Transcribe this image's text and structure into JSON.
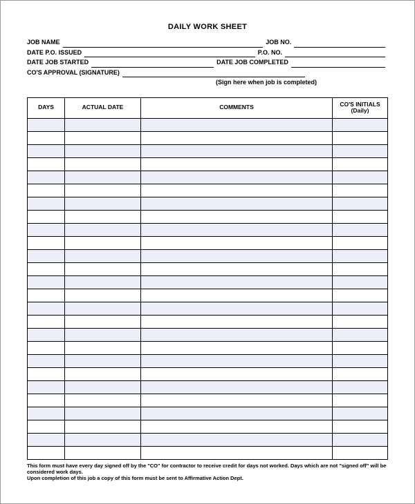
{
  "title": "DAILY WORK SHEET",
  "header": {
    "job_name_label": "JOB NAME",
    "job_no_label": "JOB NO.",
    "date_po_issued_label": "DATE  P.O. ISSUED",
    "po_no_label": "P.O. NO.",
    "date_job_started_label": "DATE JOB STARTED",
    "date_job_completed_label": "DATE JOB COMPLETED",
    "cos_approval_label": "CO'S APPROVAL (SIGNATURE)",
    "sign_note": "(Sign here when job is completed)"
  },
  "table": {
    "columns": {
      "days": "DAYS",
      "actual_date": "ACTUAL DATE",
      "comments": "COMMENTS",
      "cos_initials": "CO'S INITIALS (Daily)"
    },
    "row_count": 26,
    "alt_row_bg": "#ebeef7",
    "border_color": "#000000"
  },
  "footnote": {
    "line1": "This form must have every day signed off by the \"CO\" for contractor to receive credit for days not worked.  Days which are not \"signed off\" will be considered work days.",
    "line2": "Upon completion of this job a copy of this form must be sent to Affirmative Action Dept."
  }
}
